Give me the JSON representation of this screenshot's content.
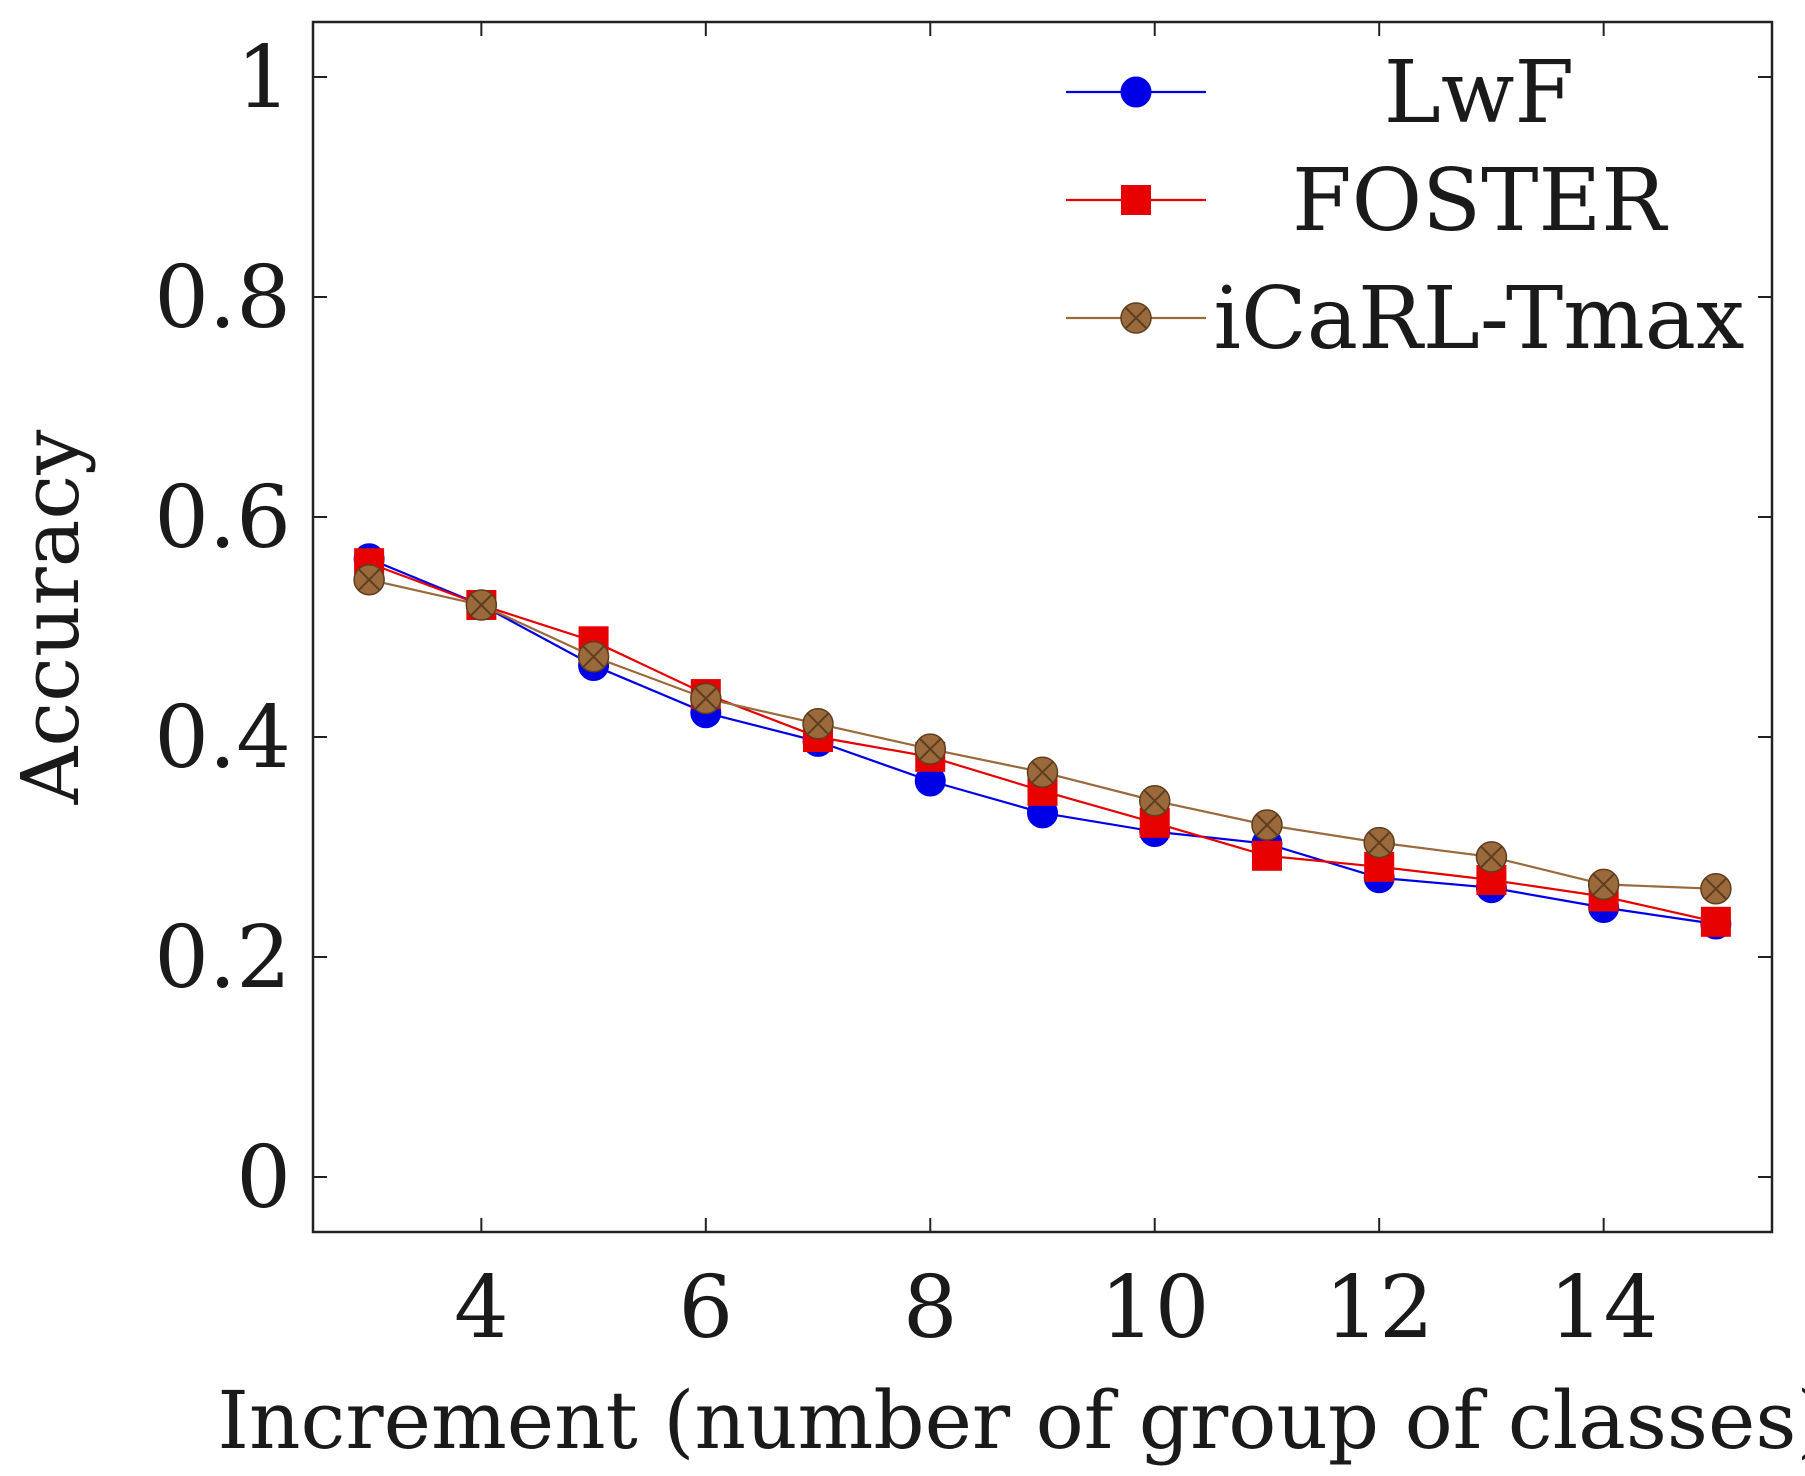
{
  "chart_data": {
    "type": "line",
    "title": "",
    "xlabel": "Increment (number of group of classes)",
    "ylabel": "Accuracy",
    "xlim": [
      2.5,
      15.5
    ],
    "ylim": [
      -0.05,
      1.05
    ],
    "x_ticks": [
      4,
      6,
      8,
      10,
      12,
      14
    ],
    "x_tick_labels": [
      "4",
      "6",
      "8",
      "10",
      "12",
      "14"
    ],
    "y_ticks": [
      0,
      0.2,
      0.4,
      0.6,
      0.8,
      1
    ],
    "y_tick_labels": [
      "0",
      "0.2",
      "0.4",
      "0.6",
      "0.8",
      "1"
    ],
    "grid": false,
    "legend_position": "top-right",
    "x": [
      3,
      4,
      5,
      6,
      7,
      8,
      9,
      10,
      11,
      12,
      13,
      14,
      15
    ],
    "series": [
      {
        "name": "LwF",
        "color": "#0000e6",
        "marker": "circle",
        "values": [
          0.562,
          0.52,
          0.465,
          0.422,
          0.396,
          0.36,
          0.331,
          0.314,
          0.303,
          0.272,
          0.263,
          0.245,
          0.23
        ]
      },
      {
        "name": "FOSTER",
        "color": "#e60000",
        "marker": "square",
        "values": [
          0.558,
          0.52,
          0.487,
          0.439,
          0.4,
          0.382,
          0.351,
          0.322,
          0.292,
          0.282,
          0.27,
          0.255,
          0.232
        ]
      },
      {
        "name": "iCaRL-Tmax",
        "color": "#9a6a3d",
        "marker": "otimes",
        "values": [
          0.543,
          0.52,
          0.473,
          0.435,
          0.412,
          0.389,
          0.368,
          0.342,
          0.32,
          0.304,
          0.291,
          0.266,
          0.262
        ]
      }
    ]
  }
}
